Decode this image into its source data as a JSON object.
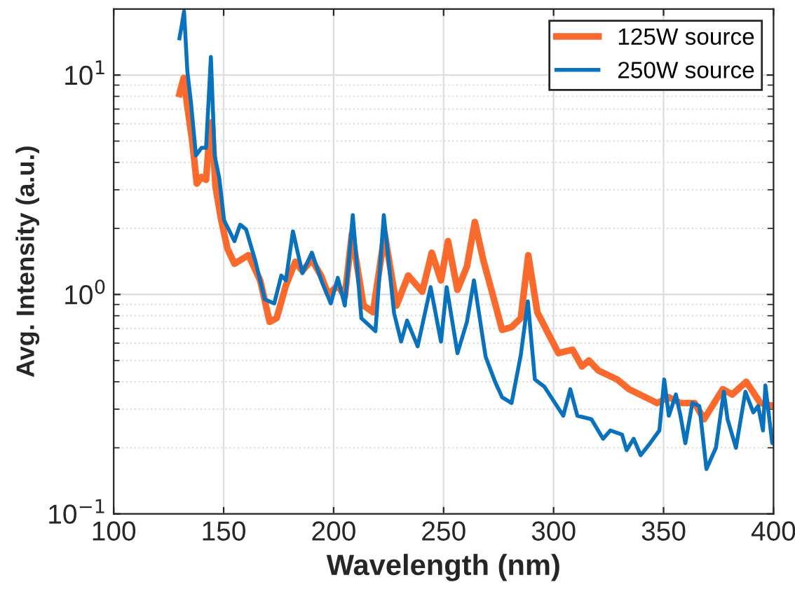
{
  "chart_data": {
    "type": "line",
    "xlabel": "Wavelength (nm)",
    "ylabel": "Avg. Intensity (a.u.)",
    "xlim": [
      100,
      400
    ],
    "xticks": [
      100,
      150,
      200,
      250,
      300,
      350,
      400
    ],
    "ylim": [
      0.1,
      20
    ],
    "yticks": [
      {
        "value": 0.1,
        "label": "10$^{−1}$"
      },
      {
        "value": 1,
        "label": "10$^{0}$"
      },
      {
        "value": 10,
        "label": "10$^{1}$"
      }
    ],
    "log": "y",
    "grid": true,
    "legend": "top right",
    "line_style": "solid",
    "marker": "none",
    "series": [
      {
        "name": "125W source",
        "color": "#f96a2c",
        "x": [
          129.9,
          131.8,
          133.5,
          135.7,
          137.8,
          139.9,
          142,
          143.8,
          144.6,
          146.3,
          148.9,
          151.7,
          154.9,
          161.3,
          166.6,
          170.9,
          174.1,
          178.3,
          182.6,
          185.8,
          190.1,
          194.4,
          197.6,
          201.9,
          205.1,
          208.3,
          213.6,
          217.9,
          223.2,
          228.6,
          233.9,
          240.3,
          244.6,
          248.8,
          252.0,
          256.3,
          260.6,
          264.2,
          268,
          272.3,
          276.6,
          280.9,
          285.1,
          288.5,
          292.6,
          302.2,
          308.6,
          312.9,
          316.1,
          320.4,
          328.9,
          334.3,
          347.1,
          352.4,
          357.7,
          364.1,
          368.4,
          376.9,
          381.2,
          387.6,
          394,
          400
        ],
        "values": [
          8.2,
          9.7,
          7.2,
          5.0,
          3.2,
          3.43,
          3.33,
          5.8,
          6.1,
          3.1,
          2.18,
          1.62,
          1.38,
          1.51,
          1.16,
          0.75,
          0.78,
          1.1,
          1.41,
          1.28,
          1.44,
          1.21,
          1.0,
          1.1,
          0.98,
          1.89,
          0.89,
          0.83,
          1.89,
          0.89,
          1.22,
          1.03,
          1.55,
          1.16,
          1.75,
          1.05,
          1.34,
          2.14,
          1.44,
          1.0,
          0.69,
          0.71,
          0.78,
          1.51,
          0.83,
          0.54,
          0.56,
          0.47,
          0.5,
          0.45,
          0.41,
          0.37,
          0.32,
          0.34,
          0.32,
          0.32,
          0.27,
          0.37,
          0.35,
          0.4,
          0.32,
          0.31
        ]
      },
      {
        "name": "250W source",
        "color": "#0a72bd",
        "x": [
          129.9,
          131,
          132,
          133.5,
          135.2,
          137.4,
          139.9,
          142,
          144.2,
          145.9,
          148,
          150.2,
          154.9,
          157.5,
          160.2,
          164.5,
          168.7,
          173,
          176.2,
          178.3,
          181.5,
          185.8,
          190.1,
          194.4,
          198.7,
          201.9,
          205.1,
          208.7,
          212.6,
          219,
          222.8,
          227.5,
          230.7,
          233.4,
          238.2,
          244.1,
          248.8,
          251.4,
          256.3,
          260.6,
          263.8,
          269.1,
          273.4,
          276.6,
          280.9,
          285.1,
          288.3,
          291.5,
          295.8,
          304.4,
          307.6,
          310.8,
          317.2,
          322.5,
          325.8,
          331.1,
          333.2,
          336.4,
          339.6,
          343.9,
          348.1,
          350.3,
          352.4,
          355.6,
          357.7,
          359.9,
          363.1,
          366.3,
          369.5,
          373.8,
          377.4,
          379.1,
          382.9,
          387.2,
          390.8,
          393,
          395.2,
          396.3,
          399.4,
          400
        ],
        "values": [
          14.7,
          17.0,
          19.5,
          10.4,
          7.4,
          4.3,
          4.66,
          4.66,
          12.1,
          4.3,
          3.39,
          2.18,
          1.75,
          2.08,
          1.98,
          1.41,
          0.95,
          0.91,
          1.22,
          1.16,
          1.94,
          1.25,
          1.55,
          1.16,
          0.91,
          1.19,
          0.89,
          2.3,
          0.78,
          0.68,
          2.3,
          0.82,
          0.61,
          0.76,
          0.58,
          1.08,
          0.61,
          1.08,
          0.54,
          0.75,
          1.16,
          0.52,
          0.4,
          0.34,
          0.32,
          0.53,
          0.93,
          0.41,
          0.38,
          0.28,
          0.37,
          0.28,
          0.27,
          0.22,
          0.24,
          0.23,
          0.195,
          0.22,
          0.185,
          0.21,
          0.24,
          0.41,
          0.28,
          0.35,
          0.28,
          0.21,
          0.32,
          0.31,
          0.16,
          0.2,
          0.36,
          0.27,
          0.2,
          0.36,
          0.29,
          0.31,
          0.24,
          0.385,
          0.21,
          0.21
        ]
      }
    ]
  }
}
